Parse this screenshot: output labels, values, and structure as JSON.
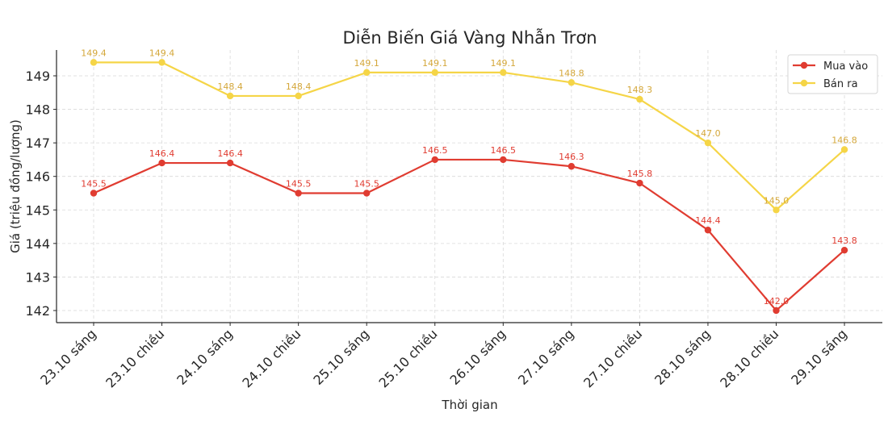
{
  "chart_data": {
    "type": "line",
    "title": "Diễn Biến Giá Vàng Nhẫn Trơn",
    "xlabel": "Thời gian",
    "ylabel": "Giá (triệu đồng/lượng)",
    "categories": [
      "23.10 sáng",
      "23.10 chiều",
      "24.10 sáng",
      "24.10 chiều",
      "25.10 sáng",
      "25.10 chiều",
      "26.10 sáng",
      "27.10 sáng",
      "27.10 chiều",
      "28.10 sáng",
      "28.10 chiều",
      "29.10 sáng"
    ],
    "series": [
      {
        "name": "Mua vào",
        "color": "#e03c31",
        "label_color": "#e03c31",
        "values": [
          145.5,
          146.4,
          146.4,
          145.5,
          145.5,
          146.5,
          146.5,
          146.3,
          145.8,
          144.4,
          142.0,
          143.8
        ]
      },
      {
        "name": "Bán ra",
        "color": "#f5d547",
        "label_color": "#d4a73a",
        "values": [
          149.4,
          149.4,
          148.4,
          148.4,
          149.1,
          149.1,
          149.1,
          148.8,
          148.3,
          147.0,
          145.0,
          146.8
        ]
      }
    ],
    "yticks": [
      142,
      143,
      144,
      145,
      146,
      147,
      148,
      149
    ],
    "ylim": [
      141.65,
      149.82
    ],
    "grid": true,
    "legend_position": "upper right"
  }
}
